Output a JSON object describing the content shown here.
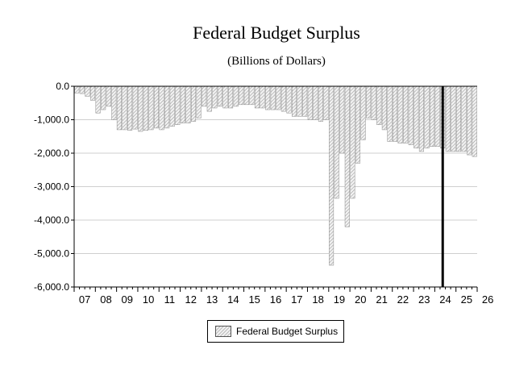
{
  "chart_data": {
    "type": "bar",
    "title": "Federal Budget Surplus",
    "subtitle": "(Billions of Dollars)",
    "xlabel": "",
    "ylabel": "",
    "ylim": [
      -6000,
      0
    ],
    "yticks": [
      "0.0",
      "-1,000.0",
      "-2,000.0",
      "-3,000.0",
      "-4,000.0",
      "-5,000.0",
      "-6,000.0"
    ],
    "ytick_values": [
      0,
      -1000,
      -2000,
      -3000,
      -4000,
      -5000,
      -6000
    ],
    "xticks": [
      "07",
      "08",
      "09",
      "10",
      "11",
      "12",
      "13",
      "14",
      "15",
      "16",
      "17",
      "18",
      "19",
      "20",
      "21",
      "22",
      "23",
      "24",
      "25",
      "26"
    ],
    "x_start": "2007Q1",
    "vertical_marker": "2024Q2",
    "legend": [
      "Federal Budget Surplus"
    ],
    "legend_position": "bottom-center",
    "series": [
      {
        "name": "Federal Budget Surplus",
        "frequency": "quarterly",
        "values": [
          -200,
          -220,
          -300,
          -420,
          -800,
          -700,
          -600,
          -1000,
          -1300,
          -1300,
          -1320,
          -1280,
          -1350,
          -1320,
          -1300,
          -1250,
          -1300,
          -1250,
          -1200,
          -1150,
          -1100,
          -1100,
          -1050,
          -950,
          -600,
          -750,
          -650,
          -600,
          -650,
          -650,
          -600,
          -550,
          -550,
          -550,
          -650,
          -650,
          -700,
          -700,
          -700,
          -750,
          -800,
          -900,
          -900,
          -900,
          -1000,
          -1000,
          -1050,
          -1000,
          -5350,
          -3350,
          -2000,
          -4200,
          -3350,
          -2300,
          -1600,
          -950,
          -1000,
          -1150,
          -1300,
          -1650,
          -1650,
          -1700,
          -1700,
          -1750,
          -1850,
          -1950,
          -1850,
          -1800,
          -1800,
          -1850,
          -1950,
          -1950,
          -1950,
          -1950,
          -2050,
          -2100
        ]
      }
    ]
  }
}
